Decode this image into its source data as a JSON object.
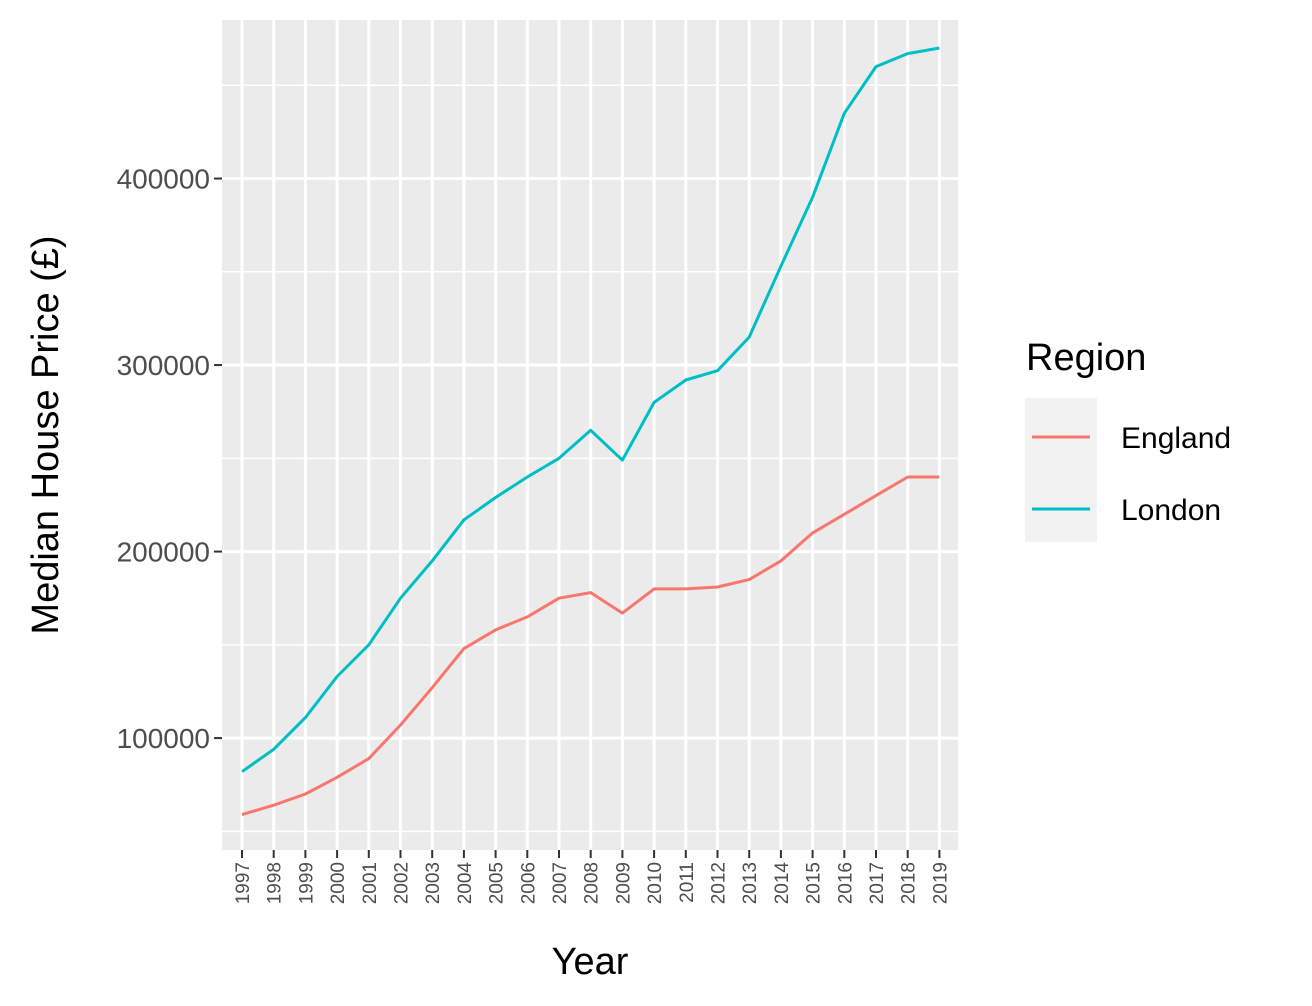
{
  "chart_data": {
    "type": "line",
    "title": "",
    "xlabel": "Year",
    "ylabel": "Median House Price (£)",
    "x": [
      "1997",
      "1998",
      "1999",
      "2000",
      "2001",
      "2002",
      "2003",
      "2004",
      "2005",
      "2006",
      "2007",
      "2008",
      "2009",
      "2010",
      "2011",
      "2012",
      "2013",
      "2014",
      "2015",
      "2016",
      "2017",
      "2018",
      "2019"
    ],
    "yticks": [
      100000,
      200000,
      300000,
      400000
    ],
    "ytick_labels": [
      "100000",
      "200000",
      "300000",
      "400000"
    ],
    "ylim": [
      40000,
      485000
    ],
    "grid": true,
    "legend": {
      "title": "Region",
      "position": "right"
    },
    "series": [
      {
        "name": "England",
        "color": "#F8766D",
        "values": [
          59000,
          64000,
          70000,
          79000,
          89000,
          107000,
          127000,
          148000,
          158000,
          165000,
          175000,
          178000,
          167000,
          180000,
          180000,
          181000,
          185000,
          195000,
          210000,
          220000,
          230000,
          240000,
          240000
        ]
      },
      {
        "name": "London",
        "color": "#00BFC4",
        "values": [
          82000,
          94000,
          111000,
          133000,
          150000,
          175000,
          195000,
          217000,
          229000,
          240000,
          250000,
          265000,
          249000,
          280000,
          292000,
          297000,
          315000,
          353000,
          390000,
          435000,
          460000,
          467000,
          470000
        ]
      }
    ]
  }
}
